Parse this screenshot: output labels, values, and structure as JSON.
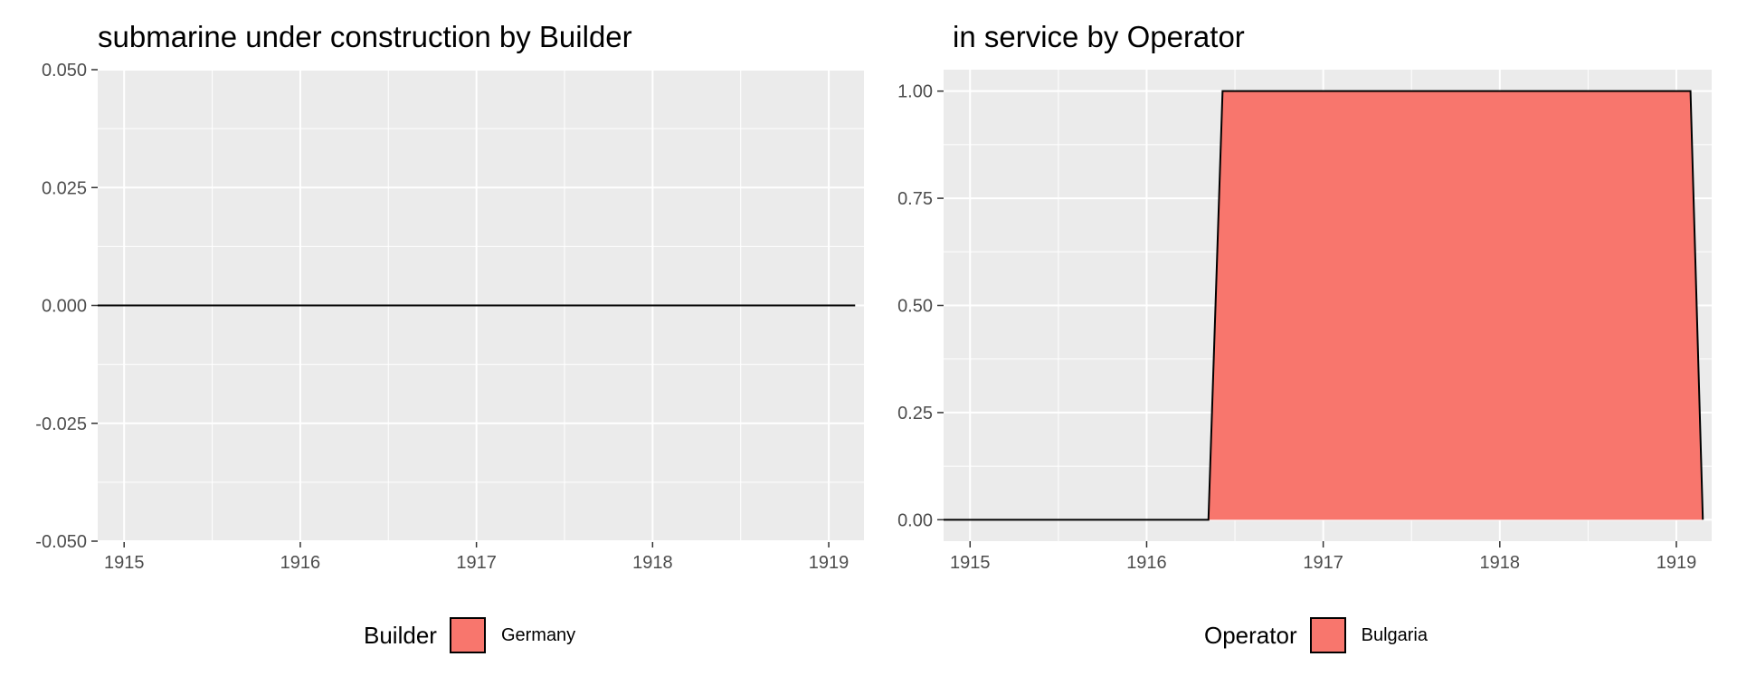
{
  "chart_data": [
    {
      "type": "area",
      "title": "submarine under construction by Builder",
      "xlabel": "",
      "ylabel": "",
      "xlim": [
        1914.85,
        1919.2
      ],
      "ylim": [
        -0.05,
        0.05
      ],
      "x_ticks": [
        1915,
        1916,
        1917,
        1918,
        1919
      ],
      "x_tick_labels": [
        "1915",
        "1916",
        "1917",
        "1918",
        "1919"
      ],
      "y_ticks": [
        -0.05,
        -0.025,
        0,
        0.025,
        0.05
      ],
      "y_tick_labels": [
        "-0.050",
        "-0.025",
        "0.000",
        "0.025",
        "0.050"
      ],
      "grid": true,
      "legend": {
        "title": "Builder",
        "position": "bottom",
        "entries": [
          "Germany"
        ]
      },
      "series": [
        {
          "name": "Germany",
          "color": "#F8766D",
          "x": [
            1914.85,
            1919.15
          ],
          "values": [
            0,
            0
          ]
        }
      ]
    },
    {
      "type": "area",
      "title": "in service by Operator",
      "xlabel": "",
      "ylabel": "",
      "xlim": [
        1914.85,
        1919.2
      ],
      "ylim": [
        0,
        1
      ],
      "x_ticks": [
        1915,
        1916,
        1917,
        1918,
        1919
      ],
      "x_tick_labels": [
        "1915",
        "1916",
        "1917",
        "1918",
        "1919"
      ],
      "y_ticks": [
        0,
        0.25,
        0.5,
        0.75,
        1
      ],
      "y_tick_labels": [
        "0.00",
        "0.25",
        "0.50",
        "0.75",
        "1.00"
      ],
      "grid": true,
      "legend": {
        "title": "Operator",
        "position": "bottom",
        "entries": [
          "Bulgaria"
        ]
      },
      "series": [
        {
          "name": "Bulgaria",
          "color": "#F8766D",
          "x": [
            1914.85,
            1916.35,
            1916.43,
            1919.08,
            1919.15
          ],
          "values": [
            0,
            0,
            1,
            1,
            0
          ]
        }
      ]
    }
  ],
  "colors": {
    "panel_background": "#EBEBEB",
    "grid_line": "#FFFFFF",
    "fill": "#F8766D",
    "outline": "#000000",
    "tick_text": "#4D4D4D"
  }
}
